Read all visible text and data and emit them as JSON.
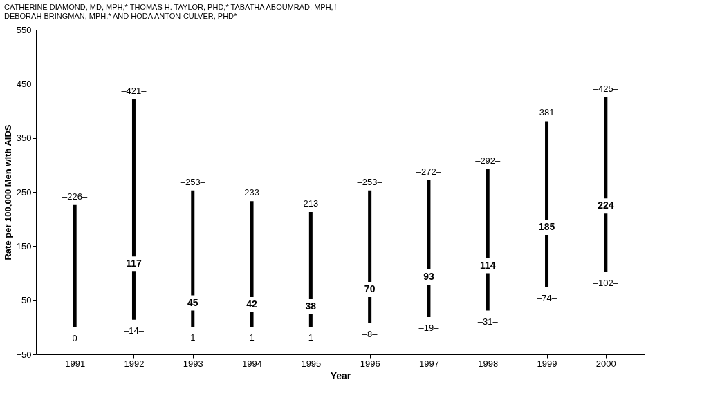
{
  "chart_data": {
    "type": "bar",
    "title": "CATHERINE DIAMOND, MD, MPH,* THOMAS H. TAYLOR, PHD,* TABATHA ABOUMRAD, MPH,† DEBORAH BRINGMAN, MPH,* AND HODA ANTON-CULVER, PHD*",
    "xlabel": "Year",
    "ylabel": "Rate per 100,000 Men with AIDS",
    "categories": [
      "1991",
      "1992",
      "1993",
      "1994",
      "1995",
      "1996",
      "1997",
      "1998",
      "1999",
      "2000"
    ],
    "base": [
      0,
      14,
      1,
      1,
      1,
      8,
      19,
      31,
      74,
      102
    ],
    "values": [
      226,
      407,
      252,
      232,
      212,
      245,
      253,
      261,
      307,
      323
    ],
    "color": "#000000",
    "annotations": [
      {
        "text": "–226–",
        "x": "1991",
        "y": 226
      },
      {
        "text": "0",
        "x": "1991",
        "y": 0
      },
      {
        "text": "–421–",
        "x": "1992",
        "y": 421
      },
      {
        "text": "117",
        "x": "1992",
        "y": 117
      },
      {
        "text": "–14–",
        "x": "1992",
        "y": 14
      },
      {
        "text": "–253–",
        "x": "1993",
        "y": 253
      },
      {
        "text": "45",
        "x": "1993",
        "y": 45
      },
      {
        "text": "–1–",
        "x": "1993",
        "y": 1
      },
      {
        "text": "–233–",
        "x": "1994",
        "y": 233
      },
      {
        "text": "42",
        "x": "1994",
        "y": 42
      },
      {
        "text": "–1–",
        "x": "1994",
        "y": 1
      },
      {
        "text": "–213–",
        "x": "1995",
        "y": 213
      },
      {
        "text": "38",
        "x": "1995",
        "y": 38
      },
      {
        "text": "–1–",
        "x": "1995",
        "y": 1
      },
      {
        "text": "–253–",
        "x": "1996",
        "y": 253
      },
      {
        "text": "70",
        "x": "1996",
        "y": 70
      },
      {
        "text": "–8–",
        "x": "1996",
        "y": 8
      },
      {
        "text": "–272–",
        "x": "1997",
        "y": 272
      },
      {
        "text": "93",
        "x": "1997",
        "y": 93
      },
      {
        "text": "–19–",
        "x": "1997",
        "y": 19
      },
      {
        "text": "–292–",
        "x": "1998",
        "y": 292
      },
      {
        "text": "114",
        "x": "1998",
        "y": 114
      },
      {
        "text": "–31–",
        "x": "1998",
        "y": 31
      },
      {
        "text": "–381–",
        "x": "1999",
        "y": 381
      },
      {
        "text": "185",
        "x": "1999",
        "y": 185
      },
      {
        "text": "–74–",
        "x": "1999",
        "y": 74
      },
      {
        "text": "–425–",
        "x": "2000",
        "y": 425
      },
      {
        "text": "224",
        "x": "2000",
        "y": 224
      },
      {
        "text": "–102–",
        "x": "2000",
        "y": 102
      }
    ],
    "ylim": [
      -50,
      550
    ],
    "yticks": [
      -50,
      50,
      150,
      250,
      350,
      450,
      550
    ],
    "grid": false
  }
}
